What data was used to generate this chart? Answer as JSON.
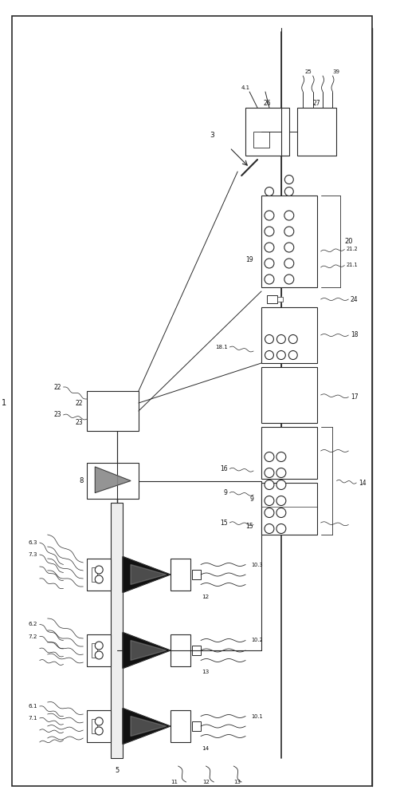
{
  "bg": "#ffffff",
  "lc": "#2a2a2a",
  "fig_w": 4.97,
  "fig_h": 10.0,
  "dpi": 100,
  "xlim": [
    0,
    100
  ],
  "ylim": [
    0,
    200
  ]
}
